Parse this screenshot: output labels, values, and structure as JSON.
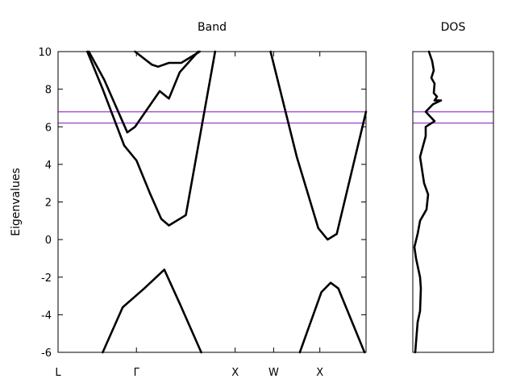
{
  "chart_data": [
    {
      "type": "line",
      "title": "Band",
      "ylabel": "Eigenvalues",
      "xlabel": "",
      "ylim": [
        -6,
        10
      ],
      "yticks": [
        -6,
        -4,
        -2,
        0,
        2,
        4,
        6,
        8,
        10
      ],
      "xlim": [
        0,
        1
      ],
      "xticks": [
        {
          "label": "L",
          "x": 0.0
        },
        {
          "label": "Γ",
          "x": 0.2545
        },
        {
          "label": "X",
          "x": 0.575
        },
        {
          "label": "W",
          "x": 0.7
        },
        {
          "label": "X",
          "x": 0.85
        }
      ],
      "grid": false,
      "hlines": [
        {
          "y": 6.2,
          "color": "#a855d6"
        },
        {
          "y": 6.8,
          "color": "#a855d6"
        }
      ],
      "series": [
        {
          "x": [
            0.145,
            0.21,
            0.28,
            0.345,
            0.395
          ],
          "y": [
            -6.0,
            -3.6,
            -2.6,
            -1.6,
            -3.4
          ],
          "color": "#000000"
        },
        {
          "x": [
            0.395,
            0.465
          ],
          "y": [
            -3.4,
            -6.0
          ],
          "color": "#000000"
        },
        {
          "x": [
            0.095,
            0.145,
            0.215,
            0.255,
            0.3,
            0.335,
            0.36,
            0.415,
            0.51
          ],
          "y": [
            10.0,
            8.0,
            5.0,
            4.2,
            2.4,
            1.1,
            0.75,
            1.3,
            10.0
          ],
          "color": "#000000"
        },
        {
          "x": [
            0.1,
            0.15,
            0.225,
            0.25,
            0.33,
            0.36,
            0.395,
            0.455
          ],
          "y": [
            10.0,
            8.5,
            5.7,
            6.0,
            7.9,
            7.5,
            8.9,
            10.0
          ],
          "color": "#000000"
        },
        {
          "x": [
            0.25,
            0.305,
            0.325,
            0.36,
            0.4,
            0.46
          ],
          "y": [
            10.0,
            9.3,
            9.2,
            9.4,
            9.4,
            10.0
          ],
          "color": "#000000"
        },
        {
          "x": [
            0.69,
            0.775,
            0.845,
            0.875,
            0.905
          ],
          "y": [
            10.0,
            4.4,
            0.6,
            0.0,
            0.3
          ],
          "color": "#000000"
        },
        {
          "x": [
            0.905,
            1.0
          ],
          "y": [
            0.3,
            6.8
          ],
          "color": "#000000"
        },
        {
          "x": [
            0.785,
            0.855,
            0.885,
            0.91
          ],
          "y": [
            -6.0,
            -2.8,
            -2.3,
            -2.6
          ],
          "color": "#000000"
        },
        {
          "x": [
            0.91,
            0.995
          ],
          "y": [
            -2.6,
            -6.0
          ],
          "color": "#000000"
        }
      ]
    },
    {
      "type": "line",
      "title": "DOS",
      "ylim": [
        -6,
        10
      ],
      "xlim": [
        0,
        1
      ],
      "grid": false,
      "hlines": [
        {
          "y": 6.2,
          "color": "#a855d6"
        },
        {
          "y": 6.8,
          "color": "#a855d6"
        }
      ],
      "series": [
        {
          "x": [
            0.2,
            0.24,
            0.26,
            0.23,
            0.27,
            0.26,
            0.3,
            0.27,
            0.35,
            0.25,
            0.16,
            0.27,
            0.16,
            0.16,
            0.09,
            0.14,
            0.19,
            0.17,
            0.09,
            0.06,
            0.02,
            0.04,
            0.06,
            0.09,
            0.1,
            0.09,
            0.06,
            0.03
          ],
          "y": [
            10.0,
            9.5,
            9.0,
            8.6,
            8.3,
            7.8,
            7.6,
            7.4,
            7.4,
            7.2,
            6.8,
            6.3,
            6.0,
            5.5,
            4.4,
            3.0,
            2.4,
            1.6,
            1.0,
            0.3,
            -0.4,
            -1.0,
            -1.4,
            -2.0,
            -2.6,
            -3.8,
            -4.4,
            -6.0
          ],
          "color": "#000000"
        }
      ]
    }
  ]
}
